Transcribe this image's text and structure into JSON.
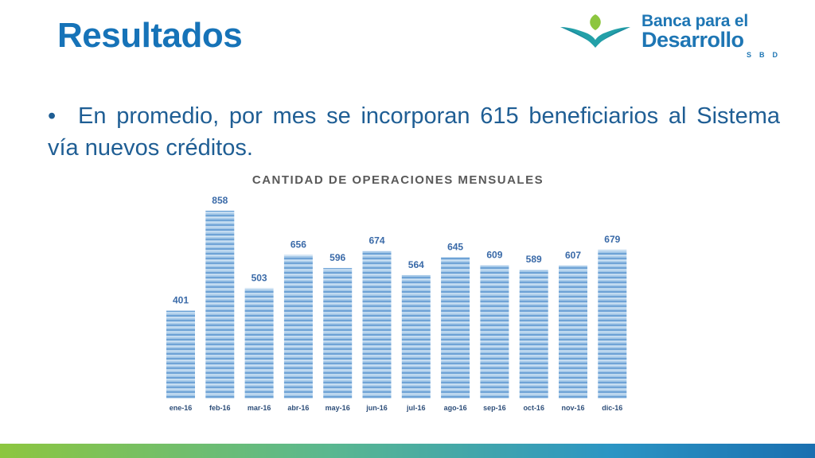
{
  "slide": {
    "title": "Resultados",
    "bullet_marker": "•",
    "bullet_text": "En promedio, por mes se incorporan 615 beneficiarios al Sistema vía nuevos créditos."
  },
  "logo": {
    "line1": "Banca para el",
    "line2": "Desarrollo",
    "line3": "SBD"
  },
  "colors": {
    "title": "#1673b8",
    "text": "#1f5e94",
    "bar_light": "#a9cbe9",
    "bar_dark": "#6fa3d6",
    "label": "#3a6aa8"
  },
  "chart_data": {
    "type": "bar",
    "title": "CANTIDAD DE OPERACIONES MENSUALES",
    "categories": [
      "ene-16",
      "feb-16",
      "mar-16",
      "abr-16",
      "may-16",
      "jun-16",
      "jul-16",
      "ago-16",
      "sep-16",
      "oct-16",
      "nov-16",
      "dic-16"
    ],
    "values": [
      401,
      858,
      503,
      656,
      596,
      674,
      564,
      645,
      609,
      589,
      607,
      679
    ],
    "xlabel": "",
    "ylabel": "",
    "ylim": [
      0,
      900
    ],
    "grid": false,
    "data_labels": true
  }
}
